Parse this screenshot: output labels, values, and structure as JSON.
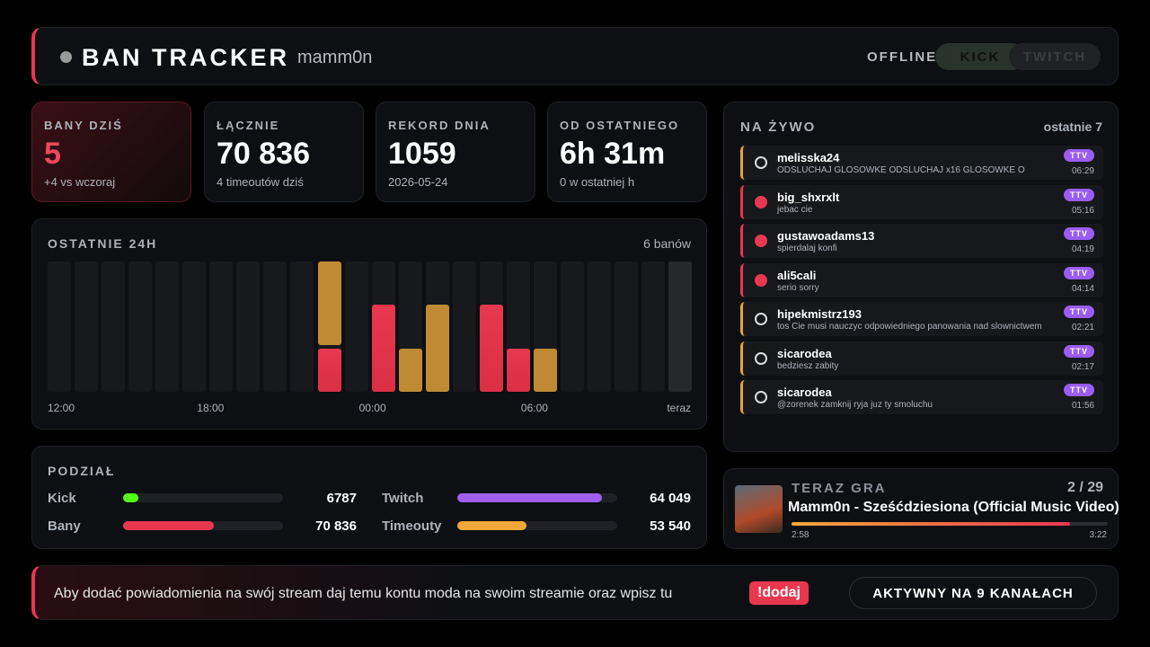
{
  "header": {
    "title": "BAN TRACKER",
    "user": "mamm0n",
    "status": "OFFLINE",
    "buttons": [
      "KICK",
      "TWITCH"
    ]
  },
  "stats": [
    {
      "label": "BANY DZIŚ",
      "value": "5",
      "sub": "+4 vs wczoraj"
    },
    {
      "label": "ŁĄCZNIE",
      "value": "70 836",
      "sub": "4 timeoutów dziś"
    },
    {
      "label": "REKORD DNIA",
      "value": "1059",
      "sub": "2026-05-24"
    },
    {
      "label": "OD OSTATNIEGO",
      "value": "6h 31m",
      "sub": "0 w ostatniej h"
    }
  ],
  "hourly": {
    "title": "OSTATNIE 24H",
    "summary": "6 banów",
    "ylim": [
      0,
      3
    ],
    "bans": [
      0,
      0,
      0,
      0,
      0,
      0,
      0,
      0,
      0,
      0,
      1,
      0,
      2,
      0,
      0,
      0,
      2,
      1,
      0,
      0,
      0,
      0,
      0,
      0
    ],
    "timeouts": [
      0,
      0,
      0,
      0,
      0,
      0,
      0,
      0,
      0,
      0,
      2,
      0,
      0,
      1,
      2,
      0,
      0,
      0,
      1,
      0,
      0,
      0,
      0,
      0
    ],
    "xlabels": [
      "12:00",
      "18:00",
      "00:00",
      "06:00",
      "teraz"
    ],
    "colors": {
      "bans": "#e8384f",
      "timeouts": "#c08a35"
    }
  },
  "split": {
    "title": "PODZIAŁ",
    "groups": [
      [
        {
          "name": "Kick",
          "value": 6787,
          "value_label": "6787",
          "color": "#53fc18"
        },
        {
          "name": "Twitch",
          "value": 64049,
          "value_label": "64 049",
          "color": "#a05ff0"
        }
      ],
      [
        {
          "name": "Bany",
          "value": 70836,
          "value_label": "70 836",
          "color": "#e8384f"
        },
        {
          "name": "Timeouty",
          "value": 53540,
          "value_label": "53 540",
          "color": "#f0a83a"
        }
      ]
    ]
  },
  "live": {
    "title": "NA ŻYWO",
    "range": "ostatnie 7",
    "items": [
      {
        "type": "timeout",
        "user": "melisska24",
        "message": "ODSLUCHAJ GLOSOWKE ODSLUCHAJ x16 GLOSOWKE O",
        "platform": "TTV",
        "time": "06:29"
      },
      {
        "type": "ban",
        "user": "big_shxrxlt",
        "message": "jebac cie",
        "platform": "TTV",
        "time": "05:16"
      },
      {
        "type": "ban",
        "user": "gustawoadams13",
        "message": "spierdalaj konfi",
        "platform": "TTV",
        "time": "04:19"
      },
      {
        "type": "ban",
        "user": "ali5cali",
        "message": "serio sorry",
        "platform": "TTV",
        "time": "04:14"
      },
      {
        "type": "timeout",
        "user": "hipekmistrz193",
        "message": "tos Cie musi nauczyc odpowiedniego panowania nad slownictwem",
        "platform": "TTV",
        "time": "02:21"
      },
      {
        "type": "timeout",
        "user": "sicarodea",
        "message": "bedziesz zabity",
        "platform": "TTV",
        "time": "02:17"
      },
      {
        "type": "timeout",
        "user": "sicarodea",
        "message": "@zorenek zamknij ryja juz ty smoluchu",
        "platform": "TTV",
        "time": "01:56"
      }
    ]
  },
  "now_playing": {
    "title": "TERAZ GRA",
    "position": "2 / 29",
    "track": "Mamm0n - Sześćdziesiona (Official Music Video)",
    "elapsed": "2:58",
    "duration": "3:22"
  },
  "footer": {
    "text": "Aby dodać powiadomienia na swój stream daj temu kontu moda na swoim streamie oraz wpisz tu",
    "command": "!dodaj",
    "badge": "AKTYWNY NA 9 KANAŁACH"
  }
}
